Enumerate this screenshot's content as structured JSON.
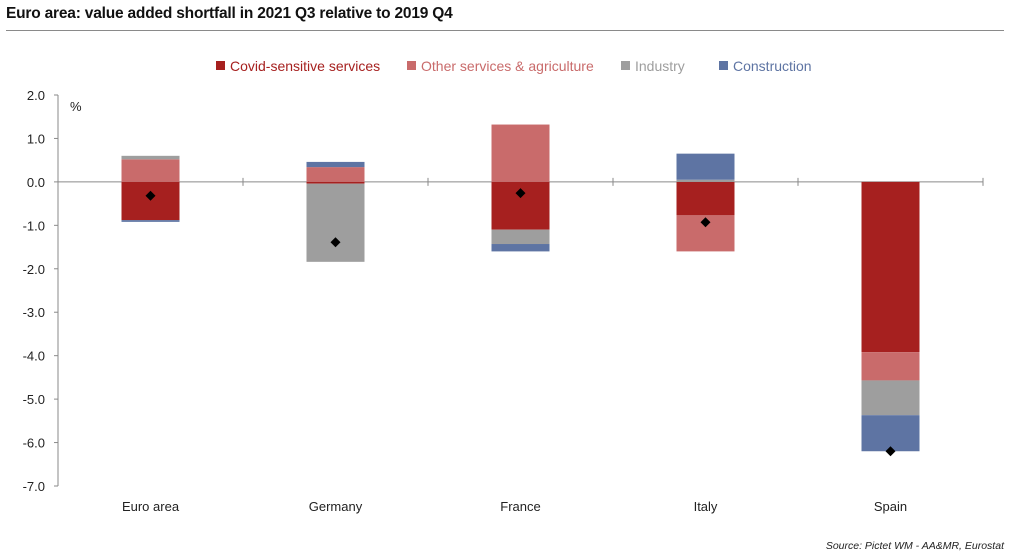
{
  "title": "Euro area: value added shortfall in 2021 Q3 relative to 2019 Q4",
  "source": "Source: Pictet WM - AA&MR, Eurostat",
  "chart_data": {
    "type": "bar",
    "stacked": true,
    "unit_label": "%",
    "categories": [
      "Euro area",
      "Germany",
      "France",
      "Italy",
      "Spain"
    ],
    "ylim": [
      -7.0,
      2.0
    ],
    "yticks": [
      "2.0",
      "1.0",
      "0.0",
      "-1.0",
      "-2.0",
      "-3.0",
      "-4.0",
      "-5.0",
      "-6.0",
      "-7.0"
    ],
    "legend_position": "top",
    "grid": false,
    "series": [
      {
        "name": "Covid-sensitive services",
        "color": "#a6201f",
        "values": [
          -0.88,
          -0.04,
          -1.1,
          -0.77,
          -3.92
        ]
      },
      {
        "name": "Other services & agriculture",
        "color": "#c96b6b",
        "values": [
          0.52,
          0.34,
          1.32,
          -0.83,
          -0.65
        ]
      },
      {
        "name": "Industry",
        "color": "#9e9e9e",
        "values": [
          0.08,
          -1.8,
          -0.33,
          0.05,
          -0.8
        ]
      },
      {
        "name": "Construction",
        "color": "#5e74a3",
        "values": [
          -0.04,
          0.12,
          -0.17,
          0.6,
          -0.83
        ]
      }
    ],
    "totals": [
      -0.32,
      -1.39,
      -0.26,
      -0.93,
      -6.2
    ],
    "totals_color": "#000000"
  }
}
